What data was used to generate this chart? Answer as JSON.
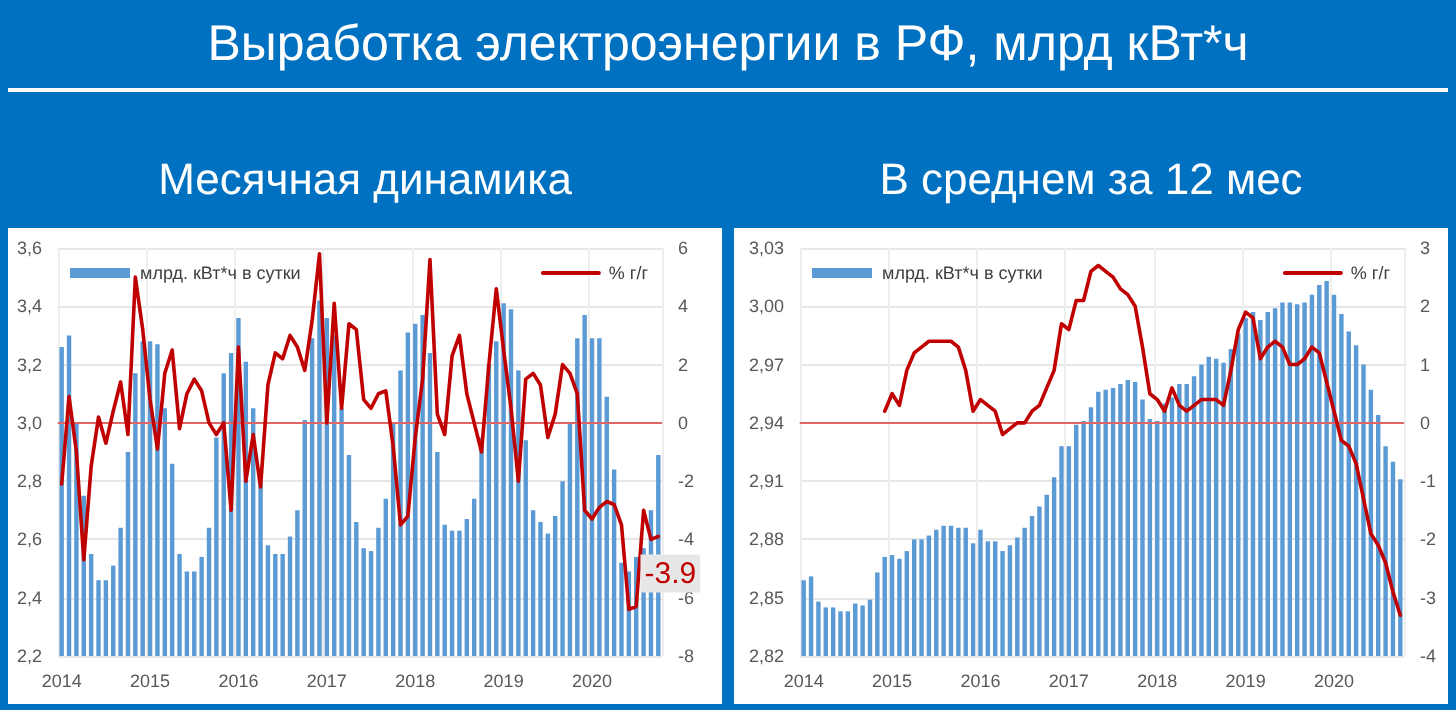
{
  "chart_data": [
    {
      "type": "bar",
      "title": "Выработка электроэнергии в РФ, млрд кВт*ч",
      "subtitle": "Месячная динамика",
      "categories": [
        "2014",
        null,
        null,
        null,
        null,
        null,
        null,
        null,
        null,
        null,
        null,
        null,
        "2015",
        null,
        null,
        null,
        null,
        null,
        null,
        null,
        null,
        null,
        null,
        null,
        "2016",
        null,
        null,
        null,
        null,
        null,
        null,
        null,
        null,
        null,
        null,
        null,
        "2017",
        null,
        null,
        null,
        null,
        null,
        null,
        null,
        null,
        null,
        null,
        null,
        "2018",
        null,
        null,
        null,
        null,
        null,
        null,
        null,
        null,
        null,
        null,
        null,
        "2019",
        null,
        null,
        null,
        null,
        null,
        null,
        null,
        null,
        null,
        null,
        null,
        "2020",
        null,
        null,
        null,
        null,
        null,
        null,
        null,
        null,
        null
      ],
      "series": [
        {
          "name": "млрд. кВт*ч в сутки",
          "color": "#5b9bd5",
          "values": [
            3.26,
            3.3,
            3.0,
            2.75,
            2.55,
            2.46,
            2.46,
            2.51,
            2.64,
            2.9,
            3.17,
            3.28,
            3.28,
            3.27,
            3.05,
            2.86,
            2.55,
            2.49,
            2.49,
            2.54,
            2.64,
            2.95,
            3.17,
            3.24,
            3.36,
            3.21,
            3.05,
            2.8,
            2.58,
            2.55,
            2.55,
            2.61,
            2.7,
            3.01,
            3.29,
            3.42,
            3.36,
            3.3,
            3.05,
            2.89,
            2.66,
            2.57,
            2.56,
            2.64,
            2.74,
            3.0,
            3.18,
            3.31,
            3.34,
            3.37,
            3.24,
            2.9,
            2.65,
            2.63,
            2.63,
            2.67,
            2.74,
            2.95,
            3.2,
            3.28,
            3.41,
            3.39,
            3.18,
            2.94,
            2.7,
            2.66,
            2.62,
            2.68,
            2.8,
            3.0,
            3.29,
            3.37,
            3.29,
            3.29,
            3.09,
            2.84,
            2.52,
            2.49,
            2.54,
            2.57,
            2.7,
            2.89
          ]
        },
        {
          "name": "% г/г",
          "type": "line",
          "axis": "y2",
          "color": "#c00000",
          "values": [
            -2.1,
            0.9,
            -1.0,
            -4.7,
            -1.5,
            0.2,
            -0.7,
            0.4,
            1.4,
            -0.4,
            5.0,
            3.2,
            0.8,
            -0.9,
            1.7,
            2.5,
            -0.2,
            1.0,
            1.5,
            1.1,
            0.0,
            -0.4,
            0.0,
            -3.0,
            2.6,
            -2.0,
            -0.4,
            -2.2,
            1.3,
            2.4,
            2.2,
            3.0,
            2.6,
            1.8,
            3.5,
            5.8,
            0.0,
            4.1,
            0.5,
            3.4,
            3.2,
            0.8,
            0.5,
            1.0,
            1.1,
            -0.8,
            -3.5,
            -3.2,
            -0.5,
            1.5,
            5.6,
            0.3,
            -0.4,
            2.3,
            3.0,
            1.0,
            0.0,
            -1.0,
            2.0,
            4.6,
            2.5,
            0.5,
            -2.0,
            1.5,
            1.7,
            1.3,
            -0.5,
            0.3,
            2.0,
            1.7,
            1.0,
            -3.0,
            -3.3,
            -2.9,
            -2.7,
            -2.8,
            -3.5,
            -6.4,
            -6.3,
            -3.0,
            -4.0,
            -3.9
          ],
          "value_labels": [
            null,
            null,
            null,
            null,
            null,
            null,
            null,
            null,
            null,
            null,
            null,
            null,
            null,
            null,
            null,
            null,
            null,
            null,
            null,
            null,
            null,
            null,
            null,
            null,
            null,
            null,
            null,
            null,
            null,
            null,
            null,
            null,
            null,
            null,
            null,
            null,
            null,
            null,
            null,
            null,
            null,
            null,
            null,
            null,
            null,
            null,
            null,
            null,
            null,
            null,
            null,
            null,
            null,
            null,
            null,
            null,
            null,
            null,
            null,
            null,
            null,
            null,
            null,
            null,
            null,
            null,
            null,
            null,
            null,
            null,
            null,
            null,
            null,
            null,
            null,
            null,
            null,
            null,
            null,
            null,
            null,
            "-3.9"
          ]
        }
      ],
      "ylim": [
        2.2,
        3.6
      ],
      "yticks": [
        {
          "value": 2.2,
          "label": "2,2"
        },
        {
          "value": 2.4,
          "label": "2,4"
        },
        {
          "value": 2.6,
          "label": "2,6"
        },
        {
          "value": 2.8,
          "label": "2,8"
        },
        {
          "value": 3.0,
          "label": "3,0"
        },
        {
          "value": 3.2,
          "label": "3,2"
        },
        {
          "value": 3.4,
          "label": "3,4"
        },
        {
          "value": 3.6,
          "label": "3,6"
        }
      ],
      "y2lim": [
        -8,
        6
      ],
      "y2ticks": [
        -8,
        -6,
        -4,
        -2,
        0,
        2,
        4,
        6
      ],
      "ref_lines": [
        {
          "axis": "y2",
          "value": 0,
          "color": "#e06666"
        }
      ],
      "grid": true,
      "legend": "top"
    },
    {
      "type": "bar",
      "title": "В среднем за 12 мес",
      "categories": [
        "2014",
        null,
        null,
        null,
        null,
        null,
        null,
        null,
        null,
        null,
        null,
        null,
        "2015",
        null,
        null,
        null,
        null,
        null,
        null,
        null,
        null,
        null,
        null,
        null,
        "2016",
        null,
        null,
        null,
        null,
        null,
        null,
        null,
        null,
        null,
        null,
        null,
        "2017",
        null,
        null,
        null,
        null,
        null,
        null,
        null,
        null,
        null,
        null,
        null,
        "2018",
        null,
        null,
        null,
        null,
        null,
        null,
        null,
        null,
        null,
        null,
        null,
        "2019",
        null,
        null,
        null,
        null,
        null,
        null,
        null,
        null,
        null,
        null,
        null,
        "2020",
        null,
        null,
        null,
        null,
        null,
        null,
        null,
        null,
        null
      ],
      "series": [
        {
          "name": "млрд. кВт*ч в сутки",
          "color": "#5b9bd5",
          "values": [
            2.859,
            2.861,
            2.848,
            2.845,
            2.845,
            2.843,
            2.843,
            2.847,
            2.846,
            2.849,
            2.863,
            2.871,
            2.872,
            2.87,
            2.874,
            2.88,
            2.88,
            2.882,
            2.885,
            2.887,
            2.887,
            2.886,
            2.886,
            2.878,
            2.885,
            2.879,
            2.879,
            2.874,
            2.877,
            2.881,
            2.886,
            2.892,
            2.897,
            2.903,
            2.912,
            2.928,
            2.928,
            2.939,
            2.941,
            2.948,
            2.956,
            2.957,
            2.958,
            2.96,
            2.962,
            2.961,
            2.952,
            2.942,
            2.941,
            2.95,
            2.953,
            2.96,
            2.96,
            2.964,
            2.97,
            2.974,
            2.973,
            2.971,
            2.978,
            2.986,
            2.994,
            2.997,
            2.993,
            2.997,
            2.999,
            3.002,
            3.002,
            3.001,
            3.002,
            3.006,
            3.011,
            3.013,
            3.006,
            2.996,
            2.987,
            2.98,
            2.97,
            2.957,
            2.944,
            2.928,
            2.92,
            2.911
          ]
        },
        {
          "name": "% г/г",
          "type": "line",
          "axis": "y2",
          "color": "#c00000",
          "values": [
            null,
            null,
            null,
            null,
            null,
            null,
            null,
            null,
            null,
            null,
            null,
            0.2,
            0.5,
            0.3,
            0.9,
            1.2,
            1.3,
            1.4,
            1.4,
            1.4,
            1.4,
            1.3,
            0.9,
            0.2,
            0.4,
            0.3,
            0.2,
            -0.2,
            -0.1,
            0.0,
            0.0,
            0.2,
            0.3,
            0.6,
            0.9,
            1.7,
            1.6,
            2.1,
            2.1,
            2.6,
            2.7,
            2.6,
            2.5,
            2.3,
            2.2,
            2.0,
            1.3,
            0.5,
            0.4,
            0.2,
            0.6,
            0.3,
            0.2,
            0.3,
            0.4,
            0.4,
            0.4,
            0.3,
            0.9,
            1.6,
            1.9,
            1.8,
            1.1,
            1.3,
            1.4,
            1.3,
            1.0,
            1.0,
            1.1,
            1.3,
            1.2,
            0.7,
            0.2,
            -0.3,
            -0.4,
            -0.7,
            -1.3,
            -1.9,
            -2.1,
            -2.4,
            -2.9,
            -3.3
          ]
        }
      ],
      "ylim": [
        2.82,
        3.03
      ],
      "yticks": [
        {
          "value": 2.82,
          "label": "2,82"
        },
        {
          "value": 2.85,
          "label": "2,85"
        },
        {
          "value": 2.88,
          "label": "2,88"
        },
        {
          "value": 2.91,
          "label": "2,91"
        },
        {
          "value": 2.94,
          "label": "2,94"
        },
        {
          "value": 2.97,
          "label": "2,97"
        },
        {
          "value": 3.0,
          "label": "3,00"
        },
        {
          "value": 3.03,
          "label": "3,03"
        }
      ],
      "y2lim": [
        -4,
        3
      ],
      "y2ticks": [
        -4,
        -3,
        -2,
        -1,
        0,
        1,
        2,
        3
      ],
      "ref_lines": [
        {
          "axis": "y2",
          "value": 0,
          "color": "#e06666"
        }
      ],
      "grid": true,
      "legend": "top"
    }
  ]
}
